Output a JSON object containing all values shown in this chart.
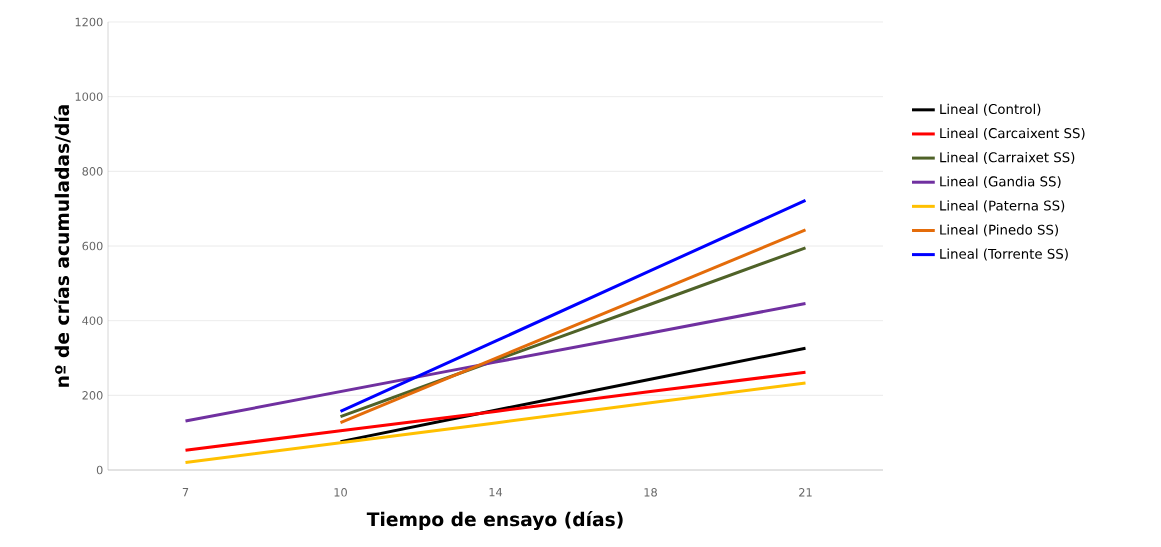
{
  "chart_data": {
    "type": "line",
    "xlabel": "Tiempo de ensayo (días)",
    "ylabel": "nº de crías acumuladas/día",
    "categories": [
      "7",
      "10",
      "14",
      "18",
      "21"
    ],
    "series": [
      {
        "name": "Lineal (Control)",
        "color": "#000000",
        "values": [
          null,
          76,
          160,
          243,
          326
        ]
      },
      {
        "name": "Lineal (Carcaixent SS)",
        "color": "#ff0000",
        "values": [
          53,
          105,
          157,
          210,
          262
        ]
      },
      {
        "name": "Lineal (Carraixet SS)",
        "color": "#4f6228",
        "values": [
          null,
          143,
          294,
          444,
          595
        ]
      },
      {
        "name": "Lineal (Gandia SS)",
        "color": "#7030a0",
        "values": [
          131,
          210,
          289,
          367,
          446
        ]
      },
      {
        "name": "Lineal (Paterna SS)",
        "color": "#ffc000",
        "values": [
          20,
          73,
          126,
          180,
          233
        ]
      },
      {
        "name": "Lineal (Pinedo SS)",
        "color": "#e46c0a",
        "values": [
          null,
          127,
          299,
          471,
          643
        ]
      },
      {
        "name": "Lineal (Torrente SS)",
        "color": "#0000ff",
        "values": [
          null,
          157,
          345,
          534,
          722
        ]
      }
    ],
    "ylim": [
      0,
      1200
    ],
    "yticks": [
      0,
      200,
      400,
      600,
      800,
      1000,
      1200
    ],
    "grid": "y",
    "legend": "right",
    "marker": "none",
    "line_style": "solid"
  }
}
